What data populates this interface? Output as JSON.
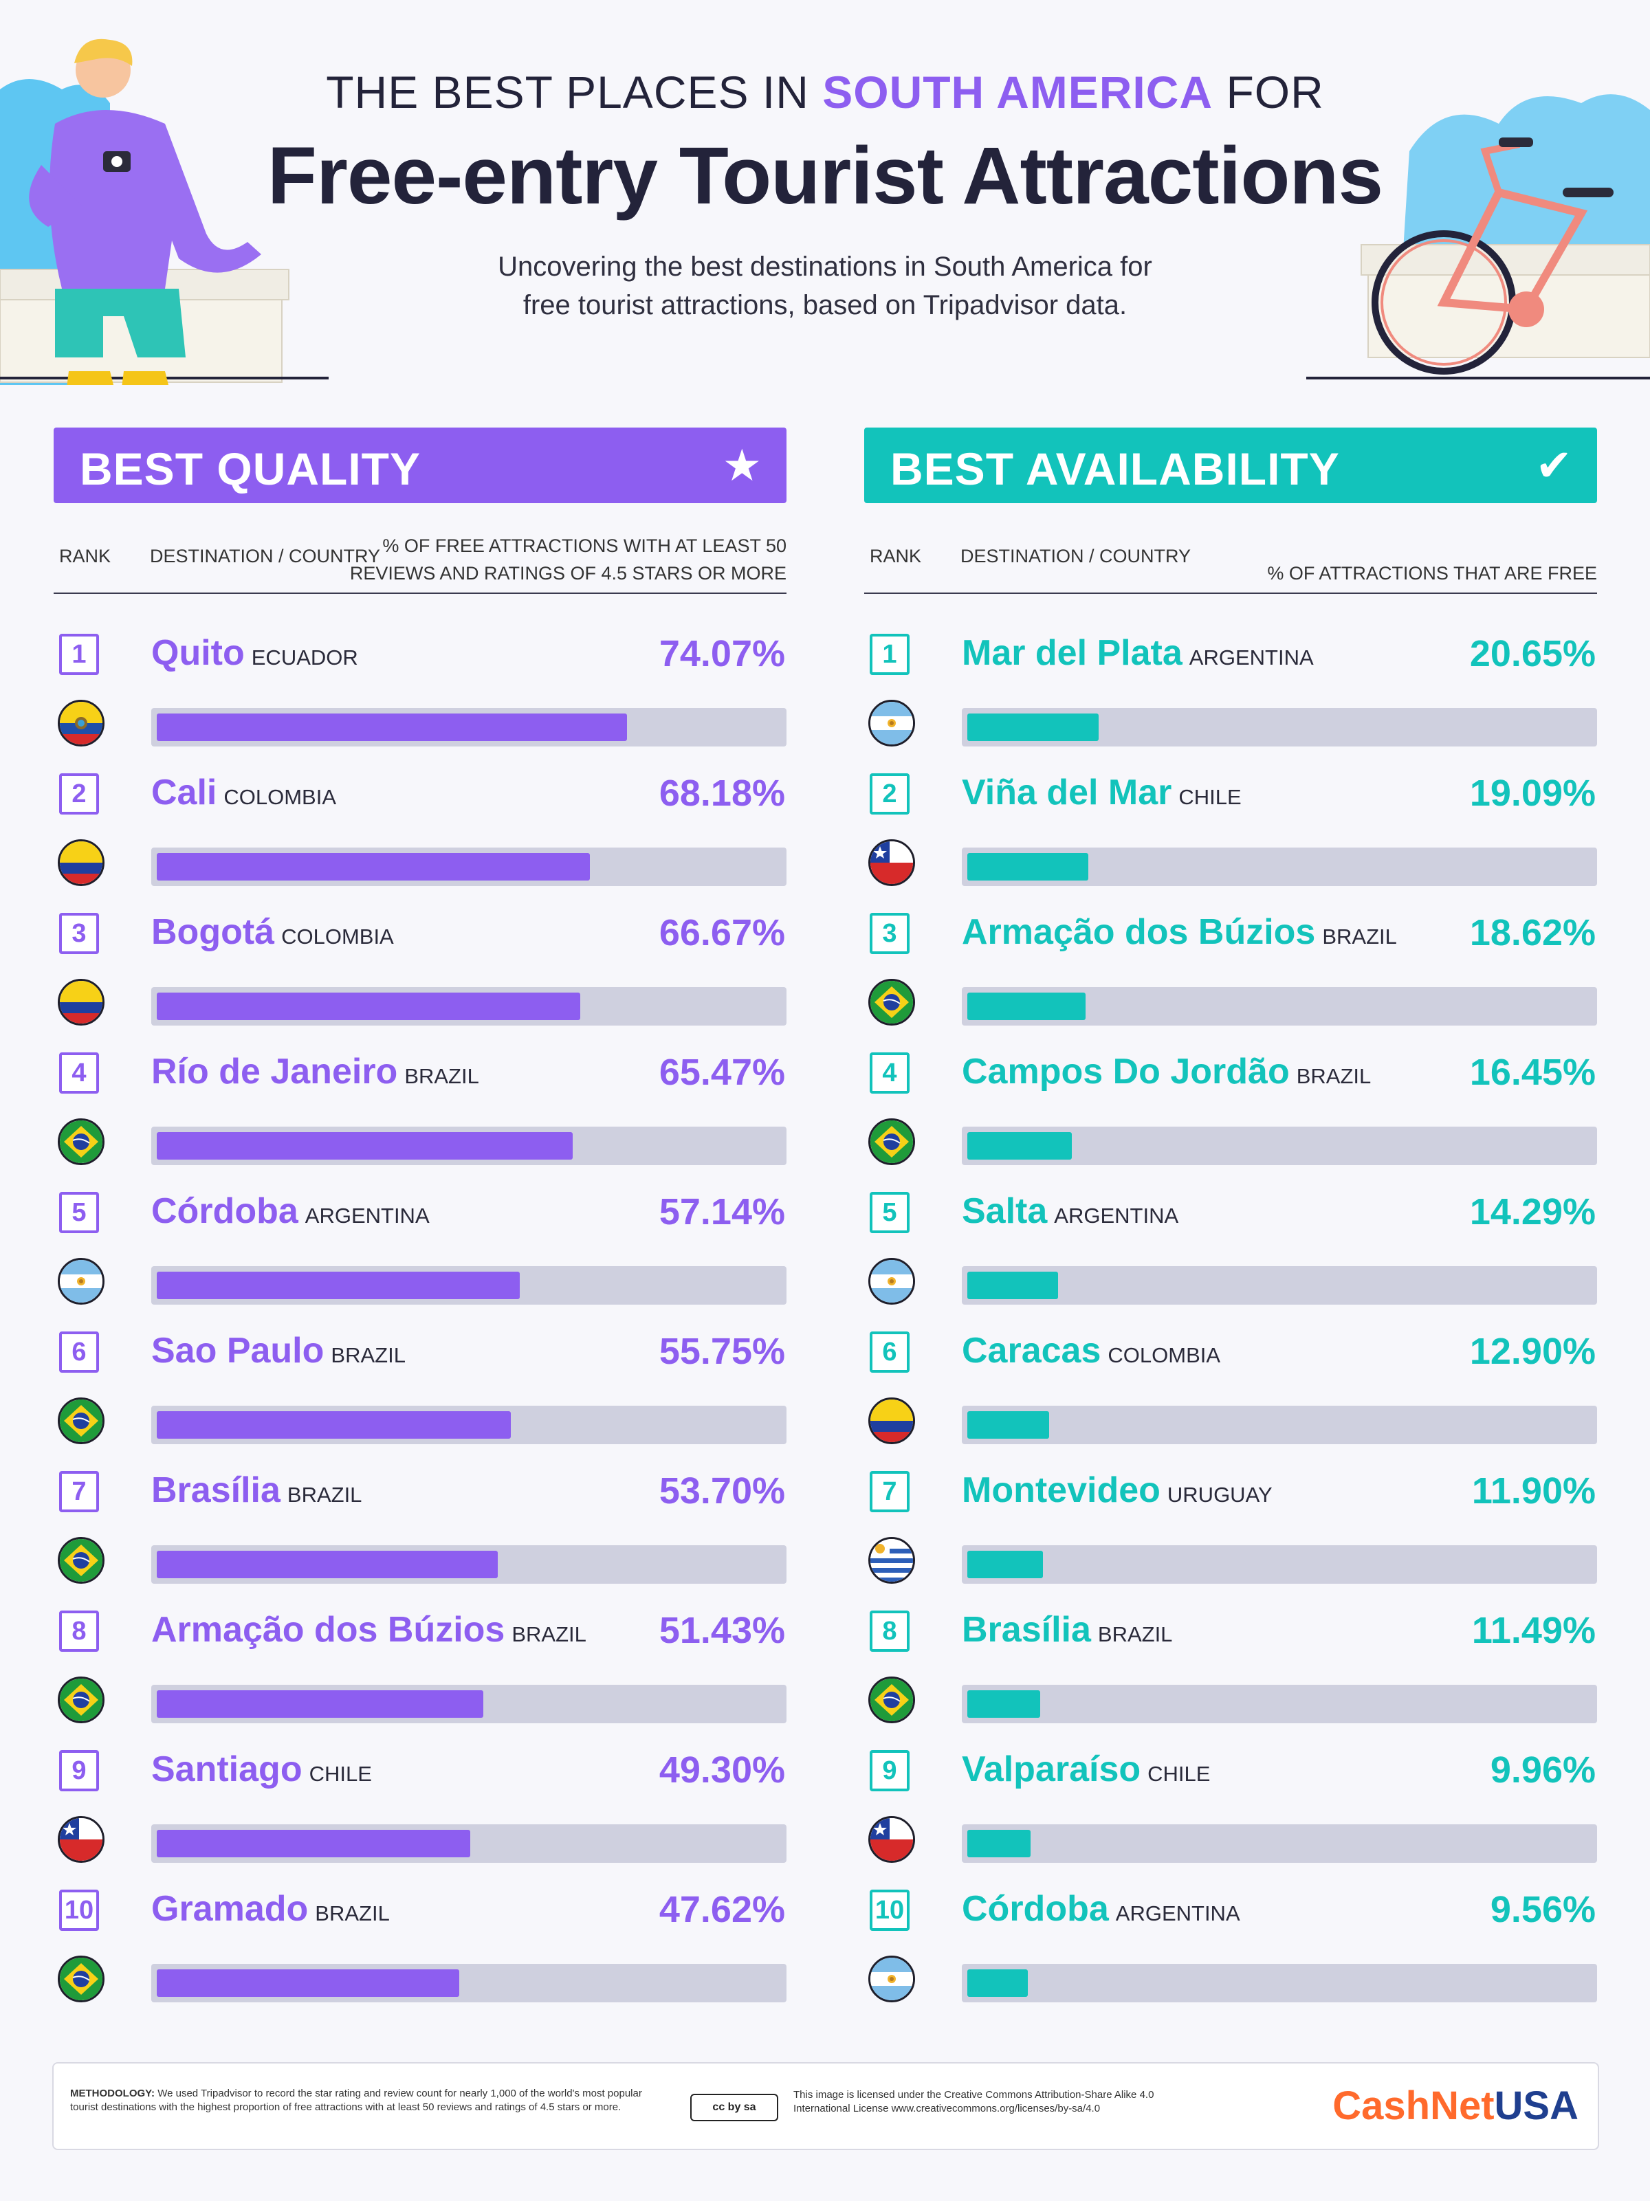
{
  "header": {
    "title_pre": "THE BEST PLACES IN",
    "title_highlight": "SOUTH AMERICA",
    "title_post": "FOR",
    "title_main": "Free-entry Tourist Attractions",
    "subtitle_line1": "Uncovering the best destinations in South America for",
    "subtitle_line2": "free tourist attractions, based on Tripadvisor data."
  },
  "colors": {
    "quality": "#8d5ef0",
    "availability": "#12c3bb",
    "track": "#cfd0df"
  },
  "chart_data": [
    {
      "type": "bar",
      "orientation": "horizontal",
      "title": "BEST QUALITY",
      "icon": "star-icon",
      "rank_header": "RANK",
      "destination_header": "DESTINATION / COUNTRY",
      "value_header_line1": "% OF FREE ATTRACTIONS WITH AT LEAST 50",
      "value_header_line2": "REVIEWS AND RATINGS OF 4.5 STARS OR MORE",
      "xlim": [
        0,
        100
      ],
      "unit": "%",
      "rows": [
        {
          "rank": "1",
          "city": "Quito",
          "country": "ECUADOR",
          "flag": "ecuador",
          "value": 74.07,
          "label": "74.07%"
        },
        {
          "rank": "2",
          "city": "Cali",
          "country": "COLOMBIA",
          "flag": "colombia",
          "value": 68.18,
          "label": "68.18%"
        },
        {
          "rank": "3",
          "city": "Bogotá",
          "country": "COLOMBIA",
          "flag": "colombia",
          "value": 66.67,
          "label": "66.67%"
        },
        {
          "rank": "4",
          "city": "Río de Janeiro",
          "country": "BRAZIL",
          "flag": "brazil",
          "value": 65.47,
          "label": "65.47%"
        },
        {
          "rank": "5",
          "city": "Córdoba",
          "country": "ARGENTINA",
          "flag": "argentina",
          "value": 57.14,
          "label": "57.14%"
        },
        {
          "rank": "6",
          "city": "Sao Paulo",
          "country": "BRAZIL",
          "flag": "brazil",
          "value": 55.75,
          "label": "55.75%"
        },
        {
          "rank": "7",
          "city": "Brasília",
          "country": "BRAZIL",
          "flag": "brazil",
          "value": 53.7,
          "label": "53.70%"
        },
        {
          "rank": "8",
          "city": "Armação dos Búzios",
          "country": "BRAZIL",
          "flag": "brazil",
          "value": 51.43,
          "label": "51.43%"
        },
        {
          "rank": "9",
          "city": "Santiago",
          "country": "CHILE",
          "flag": "chile",
          "value": 49.3,
          "label": "49.30%"
        },
        {
          "rank": "10",
          "city": "Gramado",
          "country": "BRAZIL",
          "flag": "brazil",
          "value": 47.62,
          "label": "47.62%"
        }
      ]
    },
    {
      "type": "bar",
      "orientation": "horizontal",
      "title": "BEST AVAILABILITY",
      "icon": "checkmark-icon",
      "rank_header": "RANK",
      "destination_header": "DESTINATION / COUNTRY",
      "value_header_line1": "",
      "value_header_line2": "% OF ATTRACTIONS THAT ARE FREE",
      "xlim": [
        0,
        100
      ],
      "unit": "%",
      "rows": [
        {
          "rank": "1",
          "city": "Mar del Plata",
          "country": "ARGENTINA",
          "flag": "argentina",
          "value": 20.65,
          "label": "20.65%"
        },
        {
          "rank": "2",
          "city": "Viña del Mar",
          "country": "CHILE",
          "flag": "chile",
          "value": 19.09,
          "label": "19.09%"
        },
        {
          "rank": "3",
          "city": "Armação dos Búzios",
          "country": "BRAZIL",
          "flag": "brazil",
          "value": 18.62,
          "label": "18.62%"
        },
        {
          "rank": "4",
          "city": "Campos Do Jordão",
          "country": "BRAZIL",
          "flag": "brazil",
          "value": 16.45,
          "label": "16.45%"
        },
        {
          "rank": "5",
          "city": "Salta",
          "country": "ARGENTINA",
          "flag": "argentina",
          "value": 14.29,
          "label": "14.29%"
        },
        {
          "rank": "6",
          "city": "Caracas",
          "country": "COLOMBIA",
          "flag": "colombia",
          "value": 12.9,
          "label": "12.90%"
        },
        {
          "rank": "7",
          "city": "Montevideo",
          "country": "URUGUAY",
          "flag": "uruguay",
          "value": 11.9,
          "label": "11.90%"
        },
        {
          "rank": "8",
          "city": "Brasília",
          "country": "BRAZIL",
          "flag": "brazil",
          "value": 11.49,
          "label": "11.49%"
        },
        {
          "rank": "9",
          "city": "Valparaíso",
          "country": "CHILE",
          "flag": "chile",
          "value": 9.96,
          "label": "9.96%"
        },
        {
          "rank": "10",
          "city": "Córdoba",
          "country": "ARGENTINA",
          "flag": "argentina",
          "value": 9.56,
          "label": "9.56%"
        }
      ]
    }
  ],
  "footer": {
    "methodology_label": "METHODOLOGY:",
    "methodology_text": "We used Tripadvisor to record the star rating and review count for nearly 1,000 of the world's most popular tourist destinations with the highest proportion of free attractions with at least 50 reviews and ratings of 4.5 stars or more.",
    "license_badge": "cc by sa",
    "license_text": "This image is licensed under the Creative Commons Attribution-Share Alike 4.0 International License www.creativecommons.org/licenses/by-sa/4.0",
    "brand_part1": "CashNet",
    "brand_part2": "USA"
  }
}
